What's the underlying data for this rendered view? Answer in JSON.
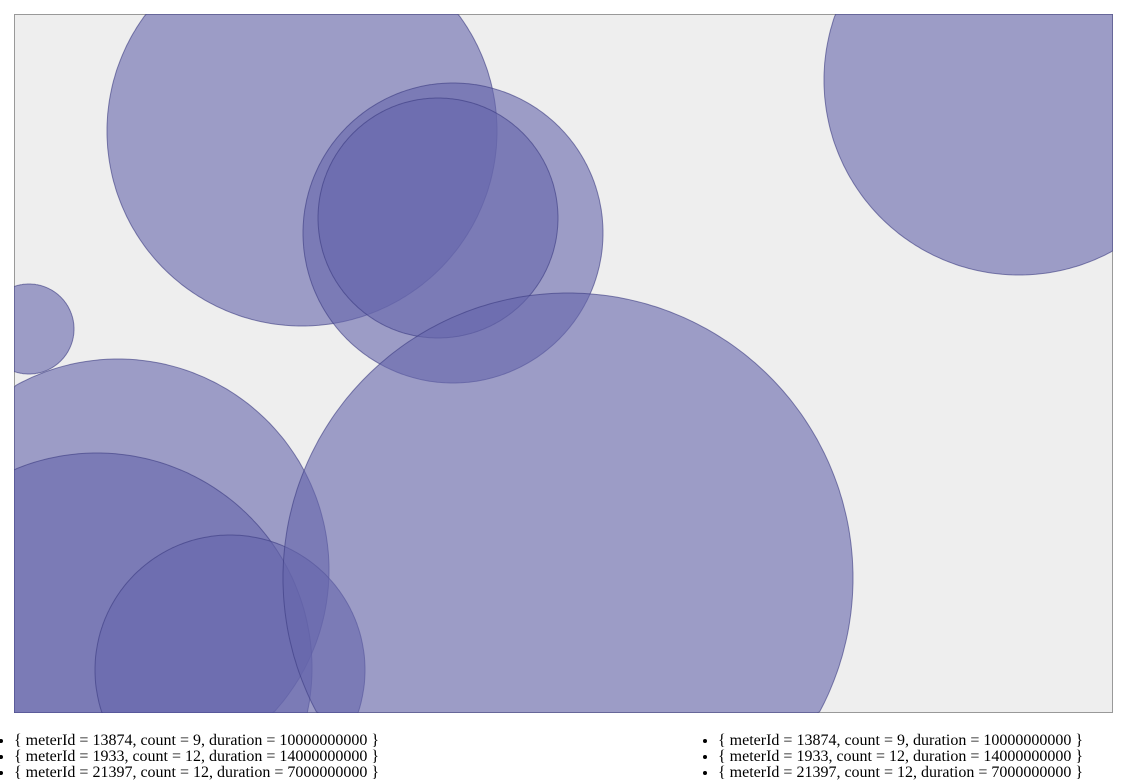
{
  "canvas": {
    "background": "#eeeeee",
    "bubble_fill": "#6565ab",
    "bubble_stroke": "#3a3a80",
    "bubble_count": 9
  },
  "lists": [
    {
      "items": [
        "{ meterId = 13874, count = 9, duration = 10000000000 }",
        "{ meterId = 1933, count = 12, duration = 14000000000 }",
        "{ meterId = 21397, count = 12, duration = 7000000000 }"
      ]
    },
    {
      "items": [
        "{ meterId = 13874, count = 9, duration = 10000000000 }",
        "{ meterId = 1933, count = 12, duration = 14000000000 }",
        "{ meterId = 21397, count = 12, duration = 7000000000 }"
      ]
    }
  ]
}
